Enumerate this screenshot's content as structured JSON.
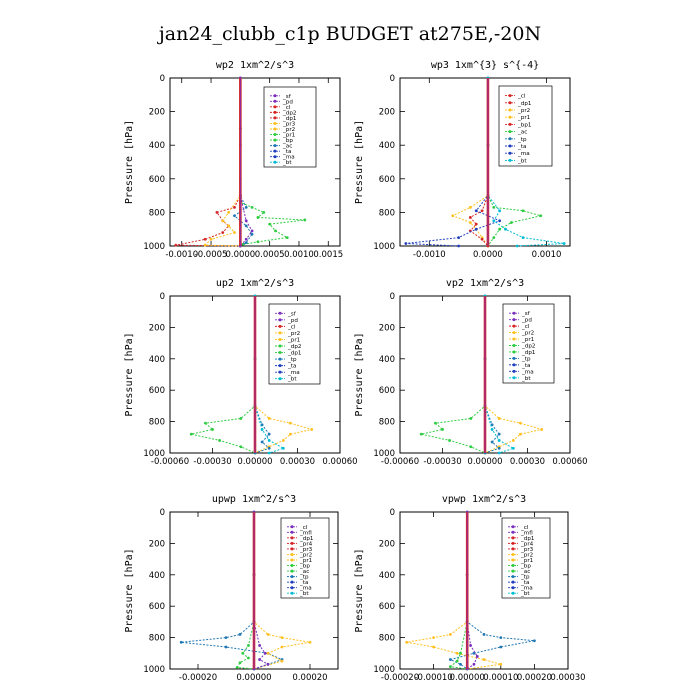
{
  "title": "jan24_clubb_c1p  BUDGET at275E,-20N",
  "chart_data": [
    {
      "type": "line",
      "title": "wp2   1xm^2/s^3",
      "ylabel": "Pressure [hPa]",
      "ylim": [
        1000,
        0
      ],
      "yticks": [
        0,
        200,
        400,
        600,
        800,
        1000
      ],
      "ytick_labels": [
        "0",
        "200",
        "400",
        "600",
        "800",
        "1000"
      ],
      "xlim": [
        -0.0012,
        0.0017
      ],
      "xticks": [
        -0.001,
        -0.0005,
        0.0,
        0.0005,
        0.001,
        0.0015
      ],
      "xtick_labels": [
        "-0.0010",
        "-0.0005",
        "0.0000",
        "0.0005",
        "0.0010",
        "0.0015"
      ],
      "legend": [
        "_sf",
        "_pd",
        "_cl",
        "_dp2",
        "_dp1",
        "_pr3",
        "_pr2",
        "_pr1",
        "_bp",
        "_ac",
        "_ta",
        "_ma",
        "_bt"
      ],
      "legend_colors": [
        "#7b2fbe",
        "#7b2fbe",
        "#d62728",
        "#d62728",
        "#d62728",
        "#ffc020",
        "#ffc020",
        "#2ecc40",
        "#2ecc40",
        "#1f77b4",
        "#1f3fbf",
        "#1f3fbf",
        "#00bcd4"
      ],
      "series": [
        {
          "color": "#2ecc40",
          "x": [
            0,
            0,
            0,
            0,
            0.0002,
            0.0004,
            0.0003,
            0.0011,
            0.0005,
            0.0006,
            0.0008,
            0.0003,
            5e-05,
            0
          ],
          "y": [
            0,
            300,
            600,
            740,
            770,
            800,
            830,
            845,
            870,
            910,
            950,
            975,
            990,
            1000
          ]
        },
        {
          "color": "#d62728",
          "x": [
            0,
            0,
            0,
            -0.0001,
            -0.0004,
            -0.0003,
            -0.0002,
            -0.0003,
            -0.0006,
            -0.0011,
            0
          ],
          "y": [
            0,
            300,
            700,
            770,
            800,
            850,
            880,
            920,
            960,
            995,
            1000
          ]
        },
        {
          "color": "#ffc020",
          "x": [
            0,
            0,
            0,
            -0.0002,
            -0.0003,
            -0.0002,
            -0.0001,
            -0.0005,
            -0.0006,
            0
          ],
          "y": [
            0,
            300,
            700,
            800,
            850,
            880,
            920,
            960,
            995,
            1000
          ]
        },
        {
          "color": "#1f77b4",
          "x": [
            0,
            0,
            0,
            0.0001,
            -0.0001,
            0.0001,
            0.0002,
            0.0001,
            0
          ],
          "y": [
            0,
            300,
            700,
            770,
            820,
            880,
            930,
            980,
            1000
          ]
        },
        {
          "color": "#7b2fbe",
          "x": [
            0,
            0,
            0,
            0.0001,
            0.0002,
            0.0001,
            0
          ],
          "y": [
            0,
            400,
            700,
            850,
            910,
            960,
            1000
          ]
        }
      ]
    },
    {
      "type": "line",
      "title": "wp3   1xm^{3} s^{-4}",
      "ylabel": "Pressure [hPa]",
      "ylim": [
        1000,
        0
      ],
      "yticks": [
        0,
        200,
        400,
        600,
        800,
        1000
      ],
      "ytick_labels": [
        "0",
        "200",
        "400",
        "600",
        "800",
        "1000"
      ],
      "xlim": [
        -0.0015,
        0.0014
      ],
      "xticks": [
        -0.001,
        0.0,
        0.001
      ],
      "xtick_labels": [
        "-0.0010",
        "0.0000",
        "0.0010"
      ],
      "legend": [
        "_cl",
        "_dp1",
        "_pr2",
        "_pr1",
        "_bp1",
        "_ac",
        "_tp",
        "_ta",
        "_ma",
        "_bt"
      ],
      "legend_colors": [
        "#d62728",
        "#d62728",
        "#ffc020",
        "#ffc020",
        "#d62728",
        "#2ecc40",
        "#1f77b4",
        "#1f3fbf",
        "#1f3fbf",
        "#00bcd4"
      ],
      "series": [
        {
          "color": "#2ecc40",
          "x": [
            0,
            0,
            0,
            0.0001,
            0.0006,
            0.0009,
            0.0004,
            0.0002,
            0.0001,
            0
          ],
          "y": [
            0,
            400,
            700,
            770,
            790,
            820,
            860,
            900,
            950,
            1000
          ]
        },
        {
          "color": "#ffc020",
          "x": [
            0,
            0,
            0,
            -0.0003,
            -0.0006,
            -0.0003,
            -0.0002,
            -0.0001,
            0
          ],
          "y": [
            0,
            400,
            700,
            770,
            820,
            860,
            900,
            950,
            1000
          ]
        },
        {
          "color": "#d62728",
          "x": [
            0,
            0,
            0,
            -0.0001,
            -0.0003,
            -0.0002,
            -0.0003,
            -0.0001,
            0
          ],
          "y": [
            0,
            400,
            700,
            790,
            830,
            870,
            910,
            960,
            1000
          ]
        },
        {
          "color": "#1f3fbf",
          "x": [
            0,
            0,
            0,
            -0.0002,
            0.0002,
            -0.0002,
            -0.0005,
            -0.0014,
            -0.0005
          ],
          "y": [
            0,
            400,
            700,
            790,
            850,
            900,
            950,
            985,
            1000
          ]
        },
        {
          "color": "#00bcd4",
          "x": [
            0,
            0,
            0,
            0.0002,
            0.0001,
            0.0003,
            0.0006,
            0.0013,
            0.0005
          ],
          "y": [
            0,
            400,
            700,
            790,
            850,
            900,
            950,
            985,
            1000
          ]
        }
      ]
    },
    {
      "type": "line",
      "title": "up2   1xm^2/s^3",
      "ylabel": "Pressure [hPa]",
      "ylim": [
        1000,
        0
      ],
      "yticks": [
        0,
        200,
        400,
        600,
        800,
        1000
      ],
      "ytick_labels": [
        "0",
        "200",
        "400",
        "600",
        "800",
        "1000"
      ],
      "xlim": [
        -0.0006,
        0.0006
      ],
      "xticks": [
        -0.0006,
        -0.0003,
        0.0,
        0.0003,
        0.0006
      ],
      "xtick_labels": [
        "-0.00060",
        "-0.00030",
        "0.00000",
        "0.00030",
        "0.00060"
      ],
      "legend": [
        "_sf",
        "_pd",
        "_cl",
        "_pr2",
        "_pr1",
        "_dp2",
        "_dp1",
        "_tp",
        "_ta",
        "_ma",
        "_bt"
      ],
      "legend_colors": [
        "#7b2fbe",
        "#7b2fbe",
        "#d62728",
        "#ffc020",
        "#ffc020",
        "#2ecc40",
        "#2ecc40",
        "#1f77b4",
        "#1f3fbf",
        "#1f3fbf",
        "#00bcd4"
      ],
      "series": [
        {
          "color": "#2ecc40",
          "x": [
            0,
            0,
            0,
            -0.0001,
            -0.00035,
            -0.0003,
            -0.00045,
            -0.00025,
            -0.0001,
            0
          ],
          "y": [
            0,
            400,
            700,
            780,
            810,
            850,
            880,
            920,
            960,
            1000
          ]
        },
        {
          "color": "#ffc020",
          "x": [
            0,
            0,
            0,
            0.0001,
            0.00025,
            0.0004,
            0.00025,
            0.0002,
            0.0001,
            0
          ],
          "y": [
            0,
            400,
            700,
            780,
            810,
            850,
            880,
            920,
            960,
            1000
          ]
        },
        {
          "color": "#1f77b4",
          "x": [
            0,
            0,
            0,
            5e-05,
            0.0001,
            5e-05,
            0.0001,
            0
          ],
          "y": [
            0,
            400,
            700,
            820,
            880,
            930,
            970,
            1000
          ]
        },
        {
          "color": "#00bcd4",
          "x": [
            0,
            0,
            0,
            5e-05,
            0.0001,
            0.0002,
            0.0001
          ],
          "y": [
            0,
            400,
            700,
            850,
            920,
            970,
            1000
          ]
        }
      ]
    },
    {
      "type": "line",
      "title": "vp2   1xm^2/s^3",
      "ylabel": "Pressure [hPa]",
      "ylim": [
        1000,
        0
      ],
      "yticks": [
        0,
        200,
        400,
        600,
        800,
        1000
      ],
      "ytick_labels": [
        "0",
        "200",
        "400",
        "600",
        "800",
        "1000"
      ],
      "xlim": [
        -0.0006,
        0.0006
      ],
      "xticks": [
        -0.0006,
        -0.0003,
        0.0,
        0.0003,
        0.0006
      ],
      "xtick_labels": [
        "-0.00060",
        "-0.00030",
        "0.00000",
        "0.00030",
        "0.00060"
      ],
      "legend": [
        "_sf",
        "_pd",
        "_cl",
        "_pr2",
        "_pr1",
        "_dp2",
        "_dp1",
        "_tp",
        "_ta",
        "_ma",
        "_bt"
      ],
      "legend_colors": [
        "#7b2fbe",
        "#7b2fbe",
        "#d62728",
        "#ffc020",
        "#ffc020",
        "#2ecc40",
        "#2ecc40",
        "#1f77b4",
        "#1f3fbf",
        "#1f3fbf",
        "#00bcd4"
      ],
      "series": [
        {
          "color": "#2ecc40",
          "x": [
            0,
            0,
            0,
            -0.0001,
            -0.00035,
            -0.0003,
            -0.00045,
            -0.00025,
            -0.0001,
            0
          ],
          "y": [
            0,
            400,
            700,
            780,
            810,
            850,
            880,
            920,
            960,
            1000
          ]
        },
        {
          "color": "#ffc020",
          "x": [
            0,
            0,
            0,
            0.0001,
            0.00025,
            0.0004,
            0.00025,
            0.0002,
            0.0001,
            0
          ],
          "y": [
            0,
            400,
            700,
            780,
            810,
            850,
            880,
            920,
            960,
            1000
          ]
        },
        {
          "color": "#1f77b4",
          "x": [
            0,
            0,
            0,
            5e-05,
            0.0001,
            5e-05,
            0.0001,
            0
          ],
          "y": [
            0,
            400,
            700,
            820,
            880,
            930,
            970,
            1000
          ]
        },
        {
          "color": "#00bcd4",
          "x": [
            0,
            0,
            0,
            5e-05,
            0.0001,
            0.0002,
            0.0001
          ],
          "y": [
            0,
            400,
            700,
            850,
            920,
            970,
            1000
          ]
        }
      ]
    },
    {
      "type": "line",
      "title": "upwp   1xm^2/s^3",
      "ylabel": "Pressure [hPa]",
      "ylim": [
        1000,
        0
      ],
      "yticks": [
        0,
        200,
        400,
        600,
        800,
        1000
      ],
      "ytick_labels": [
        "0",
        "200",
        "400",
        "600",
        "800",
        "1000"
      ],
      "xlim": [
        -0.0003,
        0.0003
      ],
      "xticks": [
        -0.0002,
        0.0,
        0.0002
      ],
      "xtick_labels": [
        "-0.00020",
        "0.00000",
        "0.00020"
      ],
      "legend": [
        "_cl",
        "_mfl",
        "_dp1",
        "_pr4",
        "_pr3",
        "_pr2",
        "_pr1",
        "_bp",
        "_ac",
        "_tp",
        "_ta",
        "_ma",
        "_bt"
      ],
      "legend_colors": [
        "#7b2fbe",
        "#7b2fbe",
        "#d62728",
        "#d62728",
        "#d62728",
        "#ffc020",
        "#ffc020",
        "#2ecc40",
        "#2ecc40",
        "#1f77b4",
        "#1f3fbf",
        "#1f3fbf",
        "#00bcd4"
      ],
      "series": [
        {
          "color": "#1f77b4",
          "x": [
            0,
            0,
            0,
            -5e-05,
            -0.0001,
            -0.00026,
            -0.0001,
            5e-05,
            0.0001,
            5e-05,
            0
          ],
          "y": [
            0,
            400,
            700,
            780,
            800,
            830,
            860,
            900,
            940,
            970,
            1000
          ]
        },
        {
          "color": "#ffc020",
          "x": [
            0,
            0,
            0,
            5e-05,
            0.0001,
            0.0002,
            0.0001,
            5e-05,
            0.0001,
            0
          ],
          "y": [
            0,
            400,
            700,
            780,
            800,
            830,
            860,
            900,
            950,
            1000
          ]
        },
        {
          "color": "#2ecc40",
          "x": [
            0,
            0,
            0,
            -2e-05,
            -4e-05,
            -2e-05,
            -5e-05,
            -6e-05,
            0
          ],
          "y": [
            0,
            400,
            700,
            850,
            900,
            930,
            960,
            990,
            1000
          ]
        },
        {
          "color": "#7b2fbe",
          "x": [
            0,
            0,
            0,
            2e-05,
            4e-05,
            2e-05,
            5e-05,
            0
          ],
          "y": [
            0,
            400,
            700,
            850,
            900,
            940,
            970,
            1000
          ]
        }
      ]
    },
    {
      "type": "line",
      "title": "vpwp   1xm^2/s^3",
      "ylabel": "Pressure [hPa]",
      "ylim": [
        1000,
        0
      ],
      "yticks": [
        0,
        200,
        400,
        600,
        800,
        1000
      ],
      "ytick_labels": [
        "0",
        "200",
        "400",
        "600",
        "800",
        "1000"
      ],
      "xlim": [
        -0.0002,
        0.0003
      ],
      "xticks": [
        -0.0002,
        -0.0001,
        0.0,
        0.0001,
        0.0002,
        0.0003
      ],
      "xtick_labels": [
        "-0.00020",
        "-0.00010",
        "0.00000",
        "0.00010",
        "0.00020",
        "0.00030"
      ],
      "legend": [
        "_cl",
        "_mfl",
        "_dp1",
        "_pr4",
        "_pr3",
        "_pr2",
        "_pr1",
        "_bp",
        "_ac",
        "_tp",
        "_ta",
        "_ma",
        "_bt"
      ],
      "legend_colors": [
        "#7b2fbe",
        "#7b2fbe",
        "#d62728",
        "#d62728",
        "#d62728",
        "#ffc020",
        "#ffc020",
        "#2ecc40",
        "#2ecc40",
        "#1f77b4",
        "#1f3fbf",
        "#1f3fbf",
        "#00bcd4"
      ],
      "series": [
        {
          "color": "#1f77b4",
          "x": [
            0,
            0,
            0,
            5e-05,
            0.0001,
            0.0002,
            0.0001,
            2e-05,
            -5e-05,
            -2e-05,
            0
          ],
          "y": [
            0,
            400,
            700,
            780,
            800,
            820,
            860,
            900,
            940,
            970,
            1000
          ]
        },
        {
          "color": "#ffc020",
          "x": [
            0,
            0,
            0,
            -5e-05,
            -0.0001,
            -0.00018,
            -0.0001,
            -3e-05,
            5e-05,
            0.0001,
            0
          ],
          "y": [
            0,
            400,
            700,
            780,
            800,
            830,
            860,
            900,
            940,
            970,
            1000
          ]
        },
        {
          "color": "#2ecc40",
          "x": [
            0,
            0,
            0,
            -2e-05,
            -3e-05,
            -5e-05,
            0
          ],
          "y": [
            0,
            400,
            700,
            900,
            950,
            985,
            1000
          ]
        },
        {
          "color": "#7b2fbe",
          "x": [
            0,
            0,
            0,
            1e-05,
            3e-05,
            2e-05,
            0
          ],
          "y": [
            0,
            400,
            700,
            850,
            920,
            970,
            1000
          ]
        }
      ]
    }
  ]
}
